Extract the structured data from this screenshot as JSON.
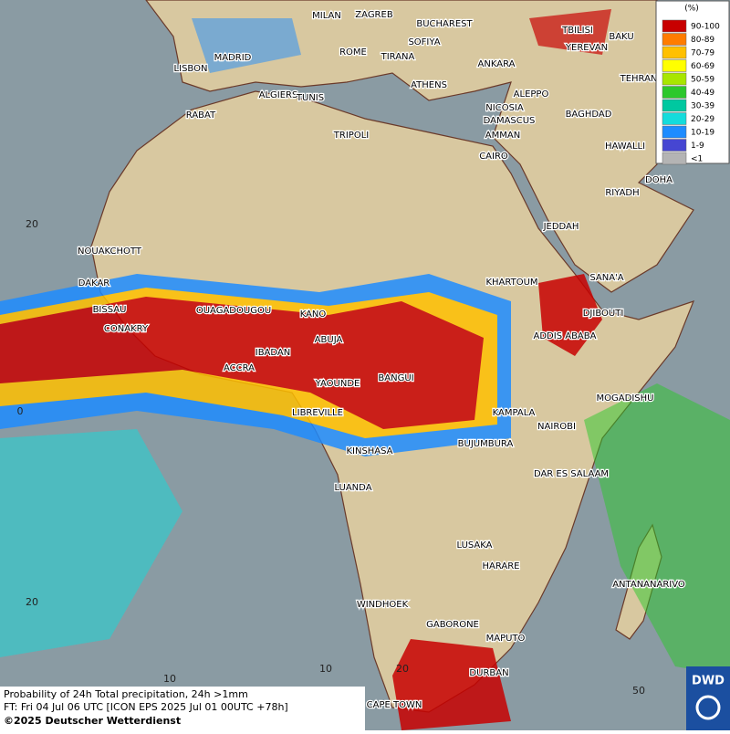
{
  "legend": {
    "title": "(%)",
    "items": [
      {
        "label": "90-100",
        "color": "#c80000"
      },
      {
        "label": "80-89",
        "color": "#ff7c00"
      },
      {
        "label": "70-79",
        "color": "#ffc000"
      },
      {
        "label": "60-69",
        "color": "#ffff00"
      },
      {
        "label": "50-59",
        "color": "#a8e600"
      },
      {
        "label": "40-49",
        "color": "#2cc82c"
      },
      {
        "label": "30-39",
        "color": "#00c8a0"
      },
      {
        "label": "20-29",
        "color": "#14dcdc"
      },
      {
        "label": "10-19",
        "color": "#1e8cff"
      },
      {
        "label": "1-9",
        "color": "#4646d2"
      },
      {
        "label": "<1",
        "color": "#b4b4b4"
      }
    ]
  },
  "cities": [
    "MILAN",
    "ZAGREB",
    "BUCHAREST",
    "SOFIYA",
    "TBILISI",
    "BAKU",
    "MADRID",
    "ROME",
    "TIRANA",
    "ANKARA",
    "YEREVAN",
    "LISBON",
    "ATHENS",
    "TEHRAN",
    "ALGIERS",
    "TUNIS",
    "ALEPPO",
    "RABAT",
    "NICOSIA",
    "BAGHDAD",
    "TRIPOLI",
    "DAMASCUS",
    "AMMAN",
    "HAWALLI",
    "CAIRO",
    "DOHA",
    "RIYADH",
    "JEDDAH",
    "NOUAKCHOTT",
    "KHARTOUM",
    "SANA'A",
    "DAKAR",
    "DJIBOUTI",
    "BISSAU",
    "OUAGADOUGOU",
    "KANO",
    "CONAKRY",
    "ABUJA",
    "ADDIS ABABA",
    "IBADAN",
    "ACCRA",
    "BANGUI",
    "YAOUNDE",
    "MOGADISHU",
    "LIBREVILLE",
    "KAMPALA",
    "NAIROBI",
    "KINSHASA",
    "BUJUMBURA",
    "DAR ES SALAAM",
    "LUANDA",
    "LUSAKA",
    "HARARE",
    "ANTANANARIVO",
    "WINDHOEK",
    "GABORONE",
    "MAPUTO",
    "DURBAN",
    "CAPE TOWN"
  ],
  "grid_labels": [
    "20",
    "0",
    "20",
    "10",
    "10",
    "20",
    "50"
  ],
  "footer": {
    "line1": "Probability of 24h Total precipitation, 24h >1mm",
    "line2": "FT: Fri 04 Jul 06 UTC [ICON EPS 2025 Jul 01 00UTC +78h]",
    "copyright": "©2025 Deutscher Wetterdienst"
  },
  "logo": "DWD"
}
